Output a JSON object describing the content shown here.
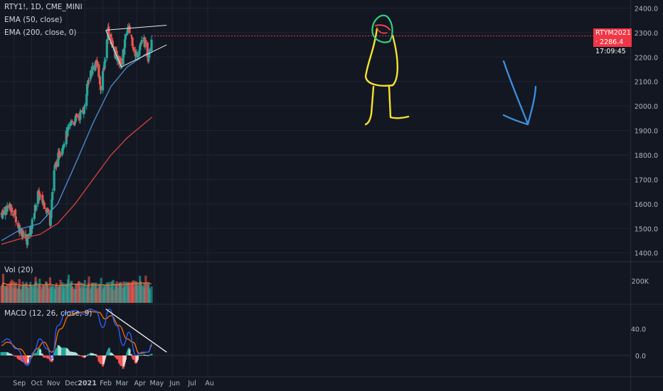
{
  "legend": {
    "symbol": "RTY1!, 1D, CME_MINI",
    "ema50": "EMA (50, close)",
    "ema200": "EMA (200, close, 0)",
    "vol": "Vol (20)",
    "macd": "MACD (12, 26, close, 9)"
  },
  "price_badge": {
    "line1": "RTYM2021 · 2286.4",
    "line2": "17:09:45"
  },
  "colors": {
    "up": "#26a69a",
    "down": "#ef5350",
    "ema50": "#4d8fd8",
    "ema200": "#e0403c",
    "macd": "#2962ff",
    "signal": "#ff6d00",
    "background": "#131722",
    "drawing_yellow": "#f5e22e",
    "drawing_green": "#35d07f",
    "drawing_red": "#f04848",
    "arrow_blue": "#3d8fe0"
  },
  "chart_data": [
    {
      "type": "candlestick",
      "title": "RTY1!, 1D, CME_MINI",
      "x_ticks": [
        "Sep",
        "Oct",
        "Nov",
        "Dec",
        "2021",
        "Feb",
        "Mar",
        "Apr",
        "May",
        "Jun",
        "Jul",
        "Au"
      ],
      "y_ticks": [
        "2400.0",
        "2300.0",
        "2200.0",
        "2100.0",
        "2000.0",
        "1900.0",
        "1800.0",
        "1700.0",
        "1600.0",
        "1500.0",
        "1400.0"
      ],
      "ylim": [
        1370,
        2410
      ],
      "close_path": [
        [
          "2020-08-10",
          1560
        ],
        [
          "2020-08-20",
          1590
        ],
        [
          "2020-08-31",
          1570
        ],
        [
          "2020-09-10",
          1500
        ],
        [
          "2020-09-24",
          1450
        ],
        [
          "2020-10-01",
          1510
        ],
        [
          "2020-10-12",
          1640
        ],
        [
          "2020-10-28",
          1580
        ],
        [
          "2020-11-02",
          1530
        ],
        [
          "2020-11-09",
          1740
        ],
        [
          "2020-11-16",
          1790
        ],
        [
          "2020-11-25",
          1850
        ],
        [
          "2020-12-08",
          1930
        ],
        [
          "2020-12-22",
          1960
        ],
        [
          "2020-12-31",
          1990
        ],
        [
          "2021-01-08",
          2120
        ],
        [
          "2021-01-15",
          2160
        ],
        [
          "2021-01-22",
          2170
        ],
        [
          "2021-01-29",
          2070
        ],
        [
          "2021-02-05",
          2200
        ],
        [
          "2021-02-10",
          2310
        ],
        [
          "2021-02-18",
          2240
        ],
        [
          "2021-02-25",
          2200
        ],
        [
          "2021-03-05",
          2170
        ],
        [
          "2021-03-15",
          2320
        ],
        [
          "2021-03-22",
          2290
        ],
        [
          "2021-03-29",
          2200
        ],
        [
          "2021-04-06",
          2250
        ],
        [
          "2021-04-13",
          2270
        ],
        [
          "2021-04-20",
          2200
        ],
        [
          "2021-04-26",
          2290
        ]
      ],
      "series": [
        {
          "name": "EMA (50, close)",
          "points": [
            [
              "2020-08-10",
              1450
            ],
            [
              "2020-09-15",
              1500
            ],
            [
              "2020-10-15",
              1520
            ],
            [
              "2020-11-15",
              1600
            ],
            [
              "2020-12-15",
              1760
            ],
            [
              "2021-01-15",
              1930
            ],
            [
              "2021-02-15",
              2080
            ],
            [
              "2021-03-15",
              2160
            ],
            [
              "2021-04-27",
              2230
            ]
          ]
        },
        {
          "name": "EMA (200, close, 0)",
          "points": [
            [
              "2020-08-10",
              1435
            ],
            [
              "2020-09-15",
              1460
            ],
            [
              "2020-10-15",
              1475
            ],
            [
              "2020-11-15",
              1520
            ],
            [
              "2020-12-15",
              1600
            ],
            [
              "2021-01-15",
              1700
            ],
            [
              "2021-02-15",
              1800
            ],
            [
              "2021-03-15",
              1870
            ],
            [
              "2021-04-27",
              1955
            ]
          ]
        }
      ],
      "annotations": {
        "wedge_upper": [
          [
            "2021-02-06",
            2310
          ],
          [
            "2021-05-22",
            2330
          ]
        ],
        "wedge_lower_left": [
          [
            "2021-02-06",
            2310
          ],
          [
            "2021-03-05",
            2160
          ]
        ],
        "wedge_lower": [
          [
            "2021-03-05",
            2160
          ],
          [
            "2021-05-22",
            2250
          ]
        ],
        "arrow_direction": "down"
      },
      "last_price": {
        "symbol": "RTYM2021",
        "value": 2286.4
      }
    },
    {
      "type": "bar",
      "title": "Vol (20)",
      "y_ticks": [
        "200K"
      ],
      "ylim": [
        0,
        350000
      ],
      "note": "daily volume bars colored by candle direction with 20-period average line"
    },
    {
      "type": "line",
      "title": "MACD (12, 26, close, 9)",
      "y_ticks": [
        "40.0",
        "0.0"
      ],
      "ylim": [
        -30,
        75
      ],
      "series": [
        {
          "name": "MACD",
          "points": [
            [
              "2020-08-10",
              20
            ],
            [
              "2020-08-20",
              25
            ],
            [
              "2020-09-05",
              10
            ],
            [
              "2020-09-24",
              -15
            ],
            [
              "2020-10-05",
              5
            ],
            [
              "2020-10-15",
              25
            ],
            [
              "2020-10-28",
              10
            ],
            [
              "2020-11-05",
              -5
            ],
            [
              "2020-11-15",
              45
            ],
            [
              "2020-11-30",
              65
            ],
            [
              "2020-12-15",
              68
            ],
            [
              "2020-12-31",
              62
            ],
            [
              "2021-01-10",
              70
            ],
            [
              "2021-01-20",
              67
            ],
            [
              "2021-02-01",
              42
            ],
            [
              "2021-02-12",
              70
            ],
            [
              "2021-02-25",
              45
            ],
            [
              "2021-03-08",
              15
            ],
            [
              "2021-03-18",
              35
            ],
            [
              "2021-03-30",
              0
            ],
            [
              "2021-04-10",
              5
            ],
            [
              "2021-04-20",
              5
            ],
            [
              "2021-04-27",
              18
            ]
          ]
        },
        {
          "name": "Signal",
          "points": [
            [
              "2020-08-10",
              15
            ],
            [
              "2020-08-20",
              20
            ],
            [
              "2020-09-10",
              10
            ],
            [
              "2020-09-28",
              -5
            ],
            [
              "2020-10-10",
              10
            ],
            [
              "2020-10-22",
              20
            ],
            [
              "2020-11-05",
              5
            ],
            [
              "2020-11-20",
              40
            ],
            [
              "2020-12-05",
              60
            ],
            [
              "2020-12-20",
              65
            ],
            [
              "2021-01-10",
              66
            ],
            [
              "2021-01-25",
              65
            ],
            [
              "2021-02-05",
              55
            ],
            [
              "2021-02-15",
              60
            ],
            [
              "2021-03-01",
              45
            ],
            [
              "2021-03-15",
              25
            ],
            [
              "2021-03-25",
              20
            ],
            [
              "2021-04-05",
              3
            ],
            [
              "2021-04-20",
              5
            ],
            [
              "2021-04-27",
              15
            ]
          ]
        }
      ],
      "trendline": [
        [
          "2021-02-06",
          70
        ],
        [
          "2021-05-22",
          5
        ]
      ]
    }
  ]
}
